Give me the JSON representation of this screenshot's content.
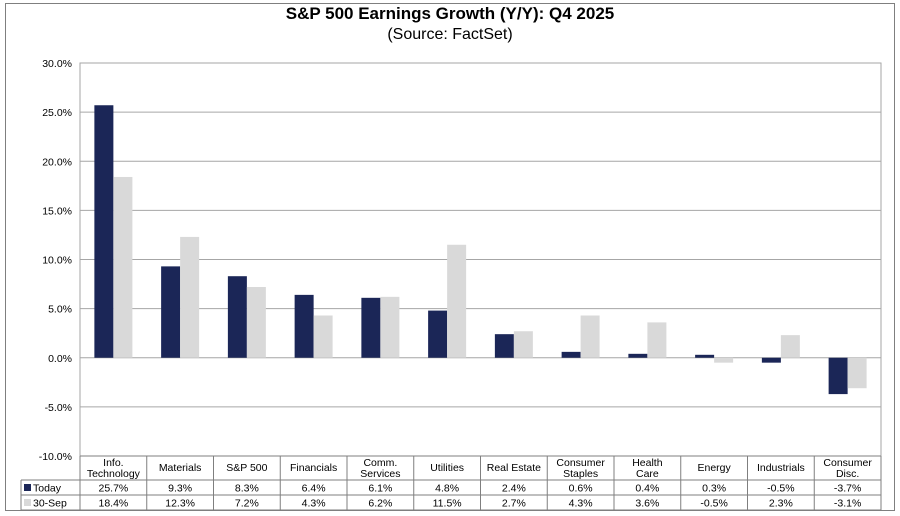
{
  "chart_data": {
    "type": "bar",
    "title": "S&P 500 Earnings Growth (Y/Y): Q4 2025",
    "subtitle": "(Source: FactSet)",
    "categories": [
      [
        "Info.",
        "Technology"
      ],
      [
        "Materials"
      ],
      [
        "S&P 500"
      ],
      [
        "Financials"
      ],
      [
        "Comm.",
        "Services"
      ],
      [
        "Utilities"
      ],
      [
        "Real Estate"
      ],
      [
        "Consumer",
        "Staples"
      ],
      [
        "Health",
        "Care"
      ],
      [
        "Energy"
      ],
      [
        "Industrials"
      ],
      [
        "Consumer",
        "Disc."
      ]
    ],
    "series": [
      {
        "name": "Today",
        "color": "#1b2657",
        "values": [
          25.7,
          9.3,
          8.3,
          6.4,
          6.1,
          4.8,
          2.4,
          0.6,
          0.4,
          0.3,
          -0.5,
          -3.7
        ],
        "labels": [
          "25.7%",
          "9.3%",
          "8.3%",
          "6.4%",
          "6.1%",
          "4.8%",
          "2.4%",
          "0.6%",
          "0.4%",
          "0.3%",
          "-0.5%",
          "-3.7%"
        ]
      },
      {
        "name": "30-Sep",
        "color": "#d9d9d9",
        "values": [
          18.4,
          12.3,
          7.2,
          4.3,
          6.2,
          11.5,
          2.7,
          4.3,
          3.6,
          -0.5,
          2.3,
          -3.1
        ],
        "labels": [
          "18.4%",
          "12.3%",
          "7.2%",
          "4.3%",
          "6.2%",
          "11.5%",
          "2.7%",
          "4.3%",
          "3.6%",
          "-0.5%",
          "2.3%",
          "-3.1%"
        ]
      }
    ],
    "ylim": [
      -10,
      30
    ],
    "yticks": [
      30,
      25,
      20,
      15,
      10,
      5,
      0,
      -5,
      -10
    ],
    "ytick_labels": [
      "30.0%",
      "25.0%",
      "20.0%",
      "15.0%",
      "10.0%",
      "5.0%",
      "0.0%",
      "-5.0%",
      "-10.0%"
    ],
    "grid": true,
    "legend": "data-table-below"
  }
}
